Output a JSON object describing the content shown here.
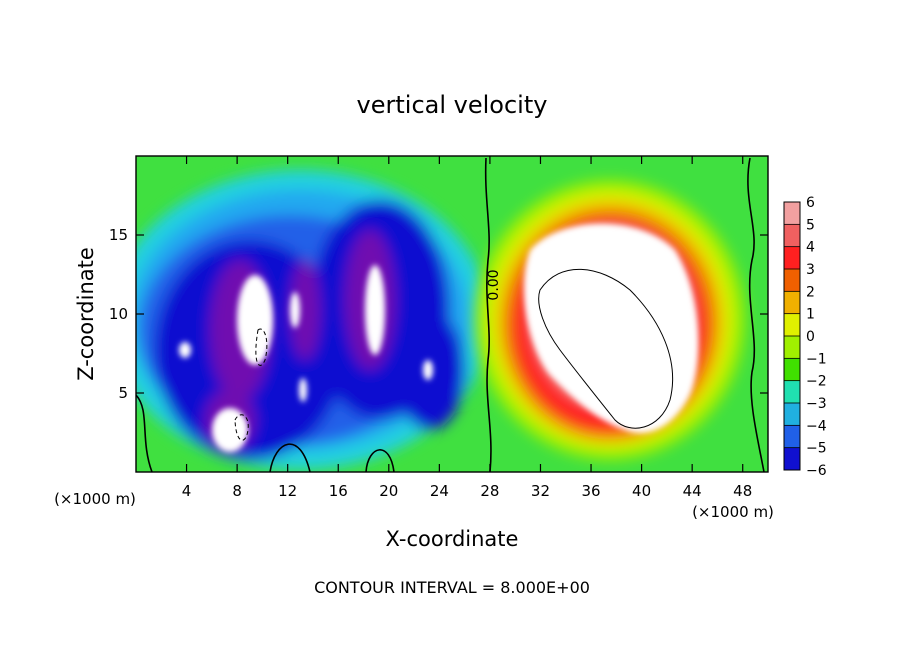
{
  "chart_data": {
    "type": "heatmap",
    "title": "vertical velocity",
    "xlabel": "X-coordinate",
    "ylabel": "Z-coordinate",
    "x_unit": "(×1000 m)",
    "xlim": [
      0,
      50
    ],
    "ylim": [
      0,
      20
    ],
    "x_ticks": [
      "4",
      "8",
      "12",
      "16",
      "20",
      "24",
      "28",
      "32",
      "36",
      "40",
      "44",
      "48"
    ],
    "y_ticks": [
      "5",
      "10",
      "15"
    ],
    "colorbar": {
      "levels": [
        "6",
        "5",
        "4",
        "3",
        "2",
        "1",
        "0",
        "−1",
        "−2",
        "−3",
        "−4",
        "−5",
        "−6"
      ],
      "colors": [
        "#f2a0a0",
        "#f06060",
        "#ff2020",
        "#f06000",
        "#f0b000",
        "#e0f000",
        "#a0f000",
        "#40e000",
        "#20e0b0",
        "#20b0e0",
        "#2060e8",
        "#1010d0",
        "#7010b0"
      ]
    },
    "contour_label": "0.00",
    "footer": "CONTOUR INTERVAL = 8.000E+00",
    "features": [
      {
        "kind": "downdraft",
        "x": [
          2,
          27
        ],
        "z": [
          0.5,
          16
        ]
      },
      {
        "kind": "updraft",
        "x": [
          29,
          47
        ],
        "z": [
          0.5,
          17
        ]
      }
    ]
  }
}
